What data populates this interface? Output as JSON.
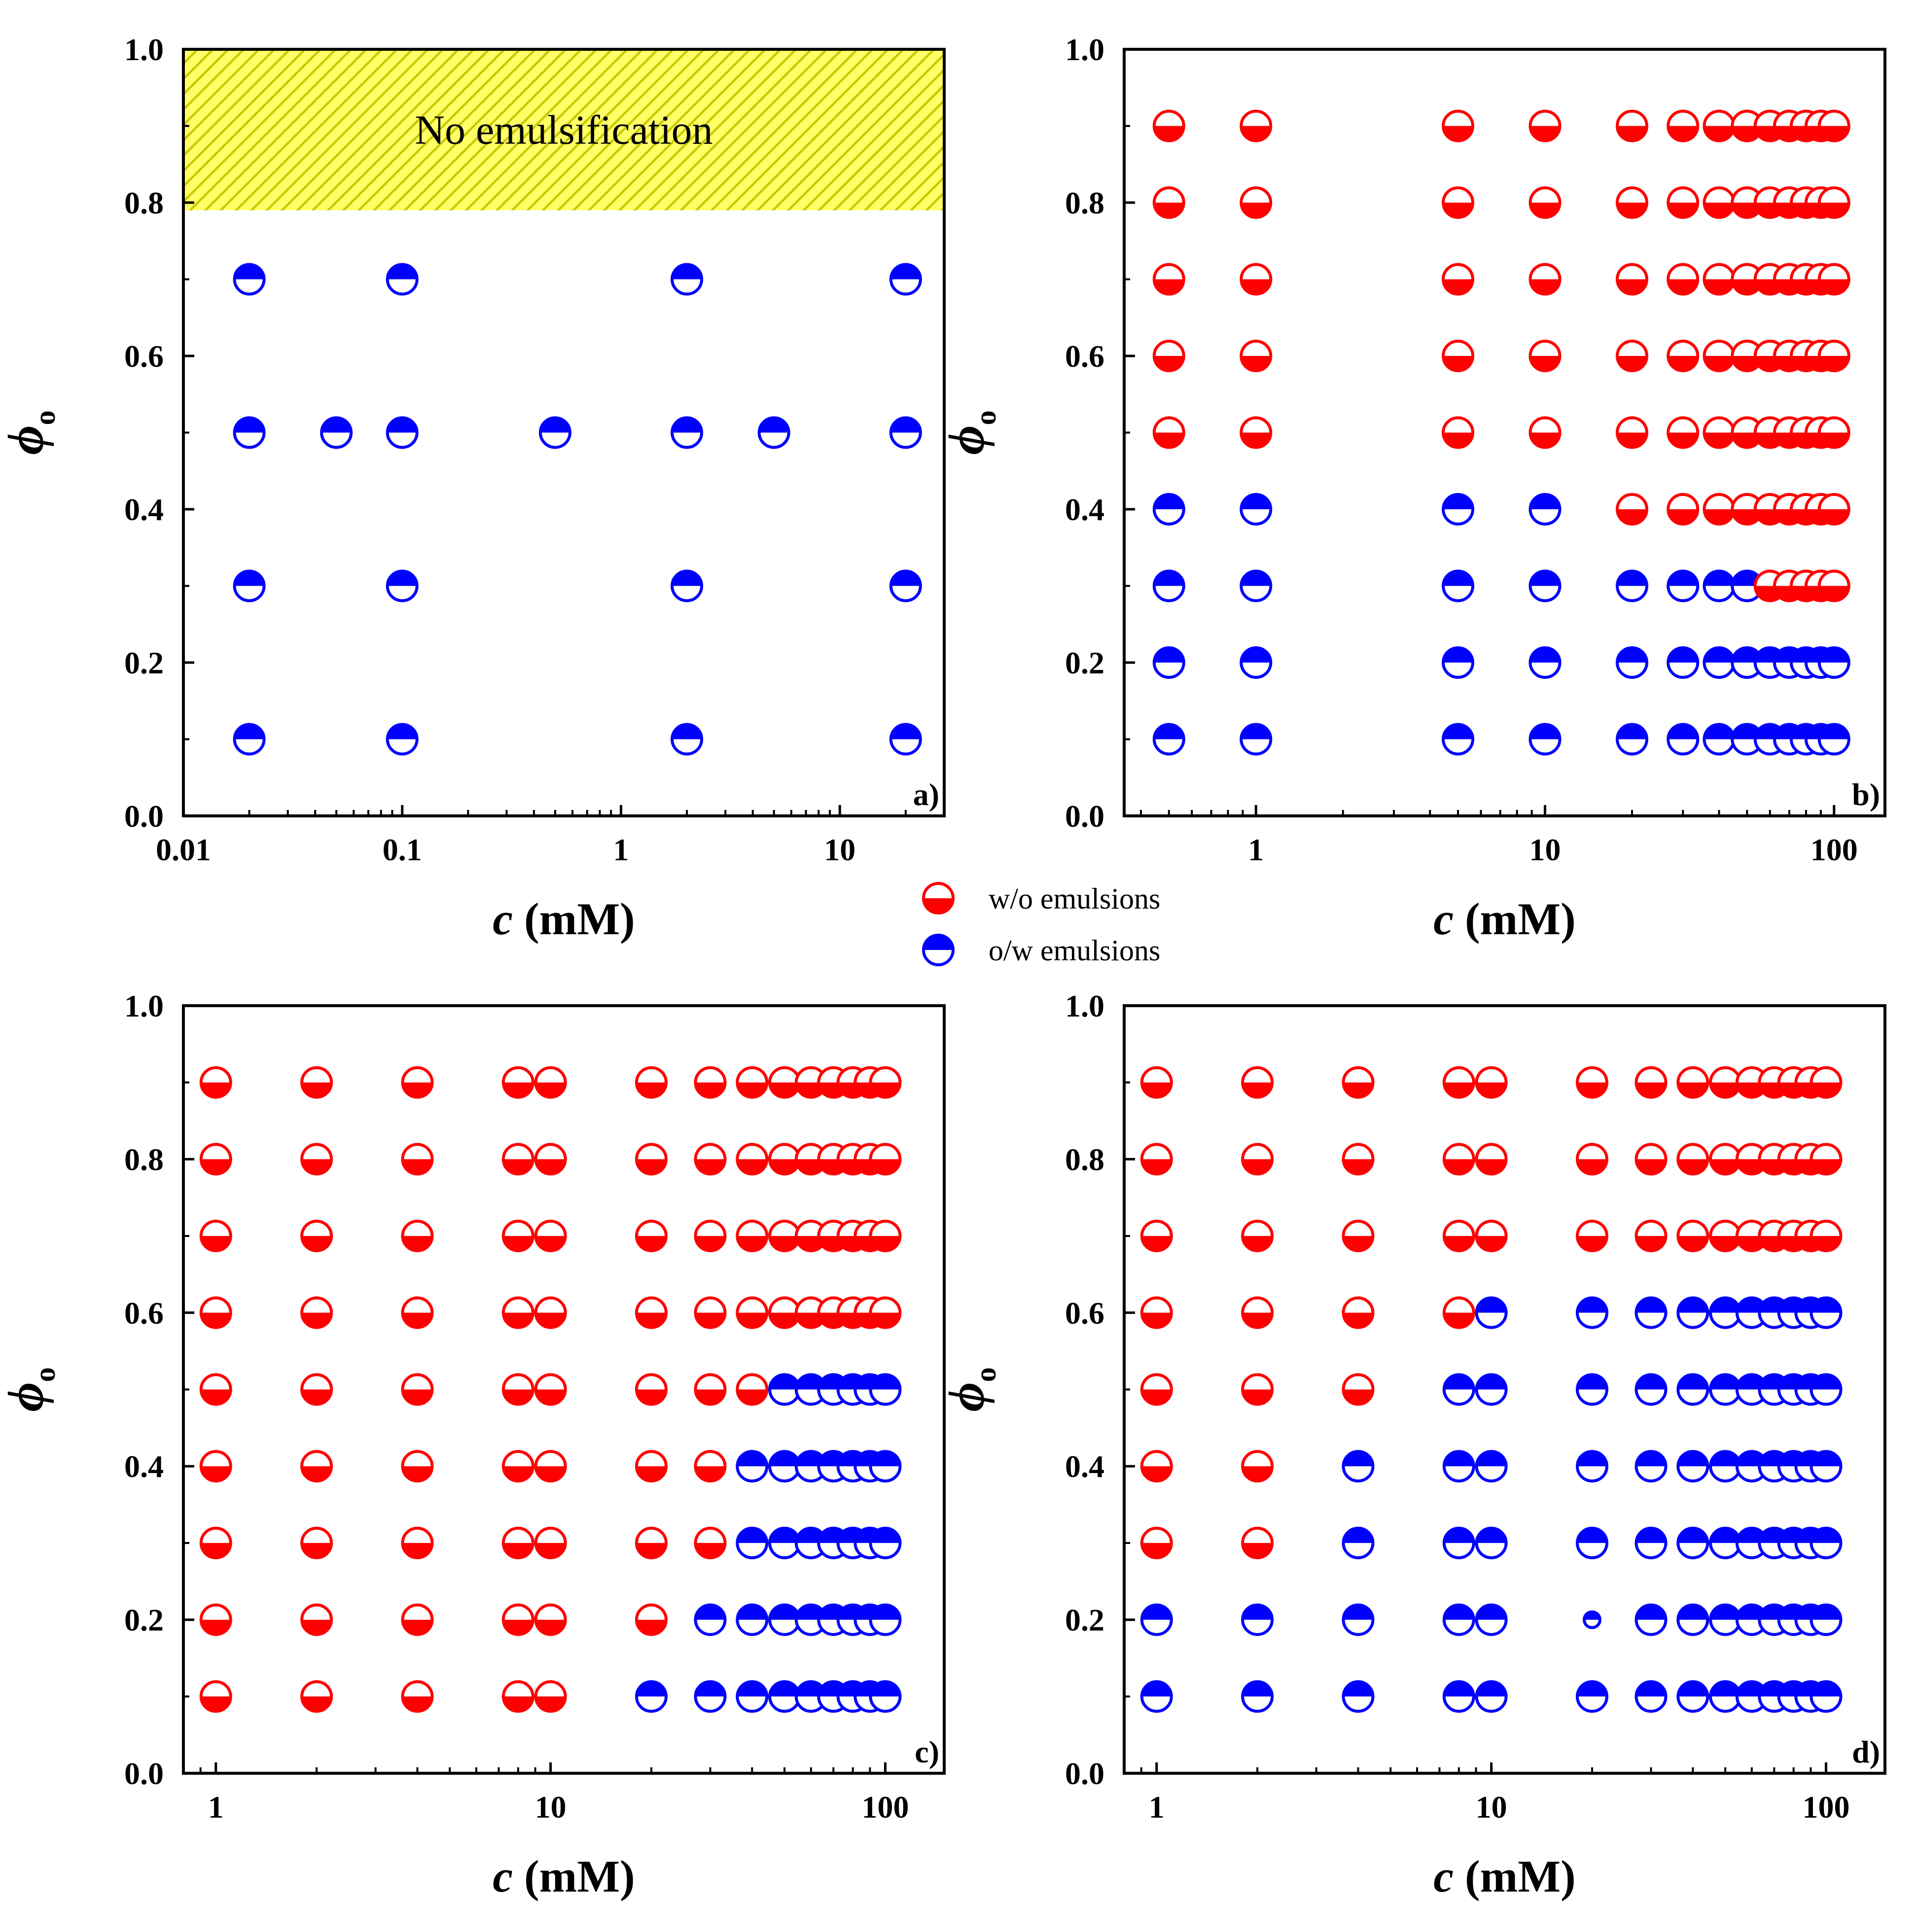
{
  "colors": {
    "w_o": "#ff0000",
    "o_w": "#0000ff",
    "no_emulsification_fill": "#ffff66",
    "no_emulsification_hatch": "#c8c800"
  },
  "legend": {
    "items": [
      {
        "label": "w/o emulsions",
        "type": "w/o",
        "color": "#ff0000"
      },
      {
        "label": "o/w emulsions",
        "type": "o/w",
        "color": "#0000ff"
      }
    ]
  },
  "chart_data": [
    {
      "type": "scatter",
      "panel_label": "a)",
      "xlabel_italic": "c",
      "xlabel_unit": "(mM)",
      "ylabel_symbol": "ϕ",
      "ylabel_sub": "o",
      "x_scale": "log",
      "xlim": [
        0.01,
        30
      ],
      "ylim": [
        0.0,
        1.0
      ],
      "xticks": [
        0.01,
        0.1,
        1,
        10
      ],
      "xtick_labels": [
        "0.01",
        "0.1",
        "1",
        "10"
      ],
      "yticks": [
        0.0,
        0.2,
        0.4,
        0.6,
        0.8,
        1.0
      ],
      "ytick_labels": [
        "0.0",
        "0.2",
        "0.4",
        "0.6",
        "0.8",
        "1.0"
      ],
      "region": {
        "label": "No emulsification",
        "y_from": 0.79,
        "y_to": 1.0
      },
      "points": [
        {
          "c": 0.02,
          "phi": 0.7,
          "type": "o/w"
        },
        {
          "c": 0.1,
          "phi": 0.7,
          "type": "o/w"
        },
        {
          "c": 2,
          "phi": 0.7,
          "type": "o/w"
        },
        {
          "c": 20,
          "phi": 0.7,
          "type": "o/w"
        },
        {
          "c": 0.02,
          "phi": 0.5,
          "type": "o/w"
        },
        {
          "c": 0.05,
          "phi": 0.5,
          "type": "o/w"
        },
        {
          "c": 0.1,
          "phi": 0.5,
          "type": "o/w"
        },
        {
          "c": 0.5,
          "phi": 0.5,
          "type": "o/w"
        },
        {
          "c": 2,
          "phi": 0.5,
          "type": "o/w"
        },
        {
          "c": 5,
          "phi": 0.5,
          "type": "o/w"
        },
        {
          "c": 20,
          "phi": 0.5,
          "type": "o/w"
        },
        {
          "c": 0.02,
          "phi": 0.3,
          "type": "o/w"
        },
        {
          "c": 0.1,
          "phi": 0.3,
          "type": "o/w"
        },
        {
          "c": 2,
          "phi": 0.3,
          "type": "o/w"
        },
        {
          "c": 20,
          "phi": 0.3,
          "type": "o/w"
        },
        {
          "c": 0.02,
          "phi": 0.1,
          "type": "o/w"
        },
        {
          "c": 0.1,
          "phi": 0.1,
          "type": "o/w"
        },
        {
          "c": 2,
          "phi": 0.1,
          "type": "o/w"
        },
        {
          "c": 20,
          "phi": 0.1,
          "type": "o/w"
        }
      ]
    },
    {
      "type": "scatter",
      "panel_label": "b)",
      "xlabel_italic": "c",
      "xlabel_unit": "(mM)",
      "ylabel_symbol": "ϕ",
      "ylabel_sub": "o",
      "x_scale": "log",
      "xlim": [
        0.35,
        150
      ],
      "ylim": [
        0.0,
        1.0
      ],
      "xticks": [
        1,
        10,
        100
      ],
      "xtick_labels": [
        "1",
        "10",
        "100"
      ],
      "yticks": [
        0.0,
        0.2,
        0.4,
        0.6,
        0.8,
        1.0
      ],
      "ytick_labels": [
        "0.0",
        "0.2",
        "0.4",
        "0.6",
        "0.8",
        "1.0"
      ],
      "concentrations": [
        0.5,
        1,
        5,
        10,
        20,
        30,
        40,
        50,
        60,
        70,
        80,
        90,
        100
      ],
      "rows": [
        {
          "phi": 0.9,
          "types": [
            "w/o",
            "w/o",
            "w/o",
            "w/o",
            "w/o",
            "w/o",
            "w/o",
            "w/o",
            "w/o",
            "w/o",
            "w/o",
            "w/o",
            "w/o"
          ]
        },
        {
          "phi": 0.8,
          "types": [
            "w/o",
            "w/o",
            "w/o",
            "w/o",
            "w/o",
            "w/o",
            "w/o",
            "w/o",
            "w/o",
            "w/o",
            "w/o",
            "w/o",
            "w/o"
          ]
        },
        {
          "phi": 0.7,
          "types": [
            "w/o",
            "w/o",
            "w/o",
            "w/o",
            "w/o",
            "w/o",
            "w/o",
            "w/o",
            "w/o",
            "w/o",
            "w/o",
            "w/o",
            "w/o"
          ]
        },
        {
          "phi": 0.6,
          "types": [
            "w/o",
            "w/o",
            "w/o",
            "w/o",
            "w/o",
            "w/o",
            "w/o",
            "w/o",
            "w/o",
            "w/o",
            "w/o",
            "w/o",
            "w/o"
          ]
        },
        {
          "phi": 0.5,
          "types": [
            "w/o",
            "w/o",
            "w/o",
            "w/o",
            "w/o",
            "w/o",
            "w/o",
            "w/o",
            "w/o",
            "w/o",
            "w/o",
            "w/o",
            "w/o"
          ]
        },
        {
          "phi": 0.4,
          "types": [
            "o/w",
            "o/w",
            "o/w",
            "o/w",
            "w/o",
            "w/o",
            "w/o",
            "w/o",
            "w/o",
            "w/o",
            "w/o",
            "w/o",
            "w/o"
          ]
        },
        {
          "phi": 0.3,
          "types": [
            "o/w",
            "o/w",
            "o/w",
            "o/w",
            "o/w",
            "o/w",
            "o/w",
            "o/w",
            "w/o",
            "w/o",
            "w/o",
            "w/o",
            "w/o"
          ]
        },
        {
          "phi": 0.2,
          "types": [
            "o/w",
            "o/w",
            "o/w",
            "o/w",
            "o/w",
            "o/w",
            "o/w",
            "o/w",
            "o/w",
            "o/w",
            "o/w",
            "o/w",
            "o/w"
          ]
        },
        {
          "phi": 0.1,
          "types": [
            "o/w",
            "o/w",
            "o/w",
            "o/w",
            "o/w",
            "o/w",
            "o/w",
            "o/w",
            "o/w",
            "o/w",
            "o/w",
            "o/w",
            "o/w"
          ]
        }
      ]
    },
    {
      "type": "scatter",
      "panel_label": "c)",
      "xlabel_italic": "c",
      "xlabel_unit": "(mM)",
      "ylabel_symbol": "ϕ",
      "ylabel_sub": "o",
      "x_scale": "log",
      "xlim": [
        0.8,
        150
      ],
      "ylim": [
        0.0,
        1.0
      ],
      "xticks": [
        1,
        10,
        100
      ],
      "xtick_labels": [
        "1",
        "10",
        "100"
      ],
      "yticks": [
        0.0,
        0.2,
        0.4,
        0.6,
        0.8,
        1.0
      ],
      "ytick_labels": [
        "0.0",
        "0.2",
        "0.4",
        "0.6",
        "0.8",
        "1.0"
      ],
      "concentrations": [
        1,
        2,
        4,
        8,
        10,
        20,
        30,
        40,
        50,
        60,
        70,
        80,
        90,
        100
      ],
      "rows": [
        {
          "phi": 0.9,
          "types": [
            "w/o",
            "w/o",
            "w/o",
            "w/o",
            "w/o",
            "w/o",
            "w/o",
            "w/o",
            "w/o",
            "w/o",
            "w/o",
            "w/o",
            "w/o",
            "w/o"
          ]
        },
        {
          "phi": 0.8,
          "types": [
            "w/o",
            "w/o",
            "w/o",
            "w/o",
            "w/o",
            "w/o",
            "w/o",
            "w/o",
            "w/o",
            "w/o",
            "w/o",
            "w/o",
            "w/o",
            "w/o"
          ]
        },
        {
          "phi": 0.7,
          "types": [
            "w/o",
            "w/o",
            "w/o",
            "w/o",
            "w/o",
            "w/o",
            "w/o",
            "w/o",
            "w/o",
            "w/o",
            "w/o",
            "w/o",
            "w/o",
            "w/o"
          ]
        },
        {
          "phi": 0.6,
          "types": [
            "w/o",
            "w/o",
            "w/o",
            "w/o",
            "w/o",
            "w/o",
            "w/o",
            "w/o",
            "w/o",
            "w/o",
            "w/o",
            "w/o",
            "w/o",
            "w/o"
          ]
        },
        {
          "phi": 0.5,
          "types": [
            "w/o",
            "w/o",
            "w/o",
            "w/o",
            "w/o",
            "w/o",
            "w/o",
            "w/o",
            "o/w",
            "o/w",
            "o/w",
            "o/w",
            "o/w",
            "o/w"
          ]
        },
        {
          "phi": 0.4,
          "types": [
            "w/o",
            "w/o",
            "w/o",
            "w/o",
            "w/o",
            "w/o",
            "w/o",
            "o/w",
            "o/w",
            "o/w",
            "o/w",
            "o/w",
            "o/w",
            "o/w"
          ]
        },
        {
          "phi": 0.3,
          "types": [
            "w/o",
            "w/o",
            "w/o",
            "w/o",
            "w/o",
            "w/o",
            "w/o",
            "o/w",
            "o/w",
            "o/w",
            "o/w",
            "o/w",
            "o/w",
            "o/w"
          ]
        },
        {
          "phi": 0.2,
          "types": [
            "w/o",
            "w/o",
            "w/o",
            "w/o",
            "w/o",
            "w/o",
            "o/w",
            "o/w",
            "o/w",
            "o/w",
            "o/w",
            "o/w",
            "o/w",
            "o/w"
          ]
        },
        {
          "phi": 0.1,
          "types": [
            "w/o",
            "w/o",
            "w/o",
            "w/o",
            "w/o",
            "o/w",
            "o/w",
            "o/w",
            "o/w",
            "o/w",
            "o/w",
            "o/w",
            "o/w",
            "o/w"
          ]
        }
      ]
    },
    {
      "type": "scatter",
      "panel_label": "d)",
      "xlabel_italic": "c",
      "xlabel_unit": "(mM)",
      "ylabel_symbol": "ϕ",
      "ylabel_sub": "o",
      "x_scale": "log",
      "xlim": [
        0.8,
        150
      ],
      "ylim": [
        0.0,
        1.0
      ],
      "xticks": [
        1,
        10,
        100
      ],
      "xtick_labels": [
        "1",
        "10",
        "100"
      ],
      "yticks": [
        0.0,
        0.2,
        0.4,
        0.6,
        0.8,
        1.0
      ],
      "ytick_labels": [
        "0.0",
        "0.2",
        "0.4",
        "0.6",
        "0.8",
        "1.0"
      ],
      "concentrations": [
        1,
        2,
        4,
        8,
        10,
        20,
        30,
        40,
        50,
        60,
        70,
        80,
        90,
        100
      ],
      "small_points": [
        {
          "c": 20,
          "phi": 0.2
        }
      ],
      "rows": [
        {
          "phi": 0.9,
          "types": [
            "w/o",
            "w/o",
            "w/o",
            "w/o",
            "w/o",
            "w/o",
            "w/o",
            "w/o",
            "w/o",
            "w/o",
            "w/o",
            "w/o",
            "w/o",
            "w/o"
          ]
        },
        {
          "phi": 0.8,
          "types": [
            "w/o",
            "w/o",
            "w/o",
            "w/o",
            "w/o",
            "w/o",
            "w/o",
            "w/o",
            "w/o",
            "w/o",
            "w/o",
            "w/o",
            "w/o",
            "w/o"
          ]
        },
        {
          "phi": 0.7,
          "types": [
            "w/o",
            "w/o",
            "w/o",
            "w/o",
            "w/o",
            "w/o",
            "w/o",
            "w/o",
            "w/o",
            "w/o",
            "w/o",
            "w/o",
            "w/o",
            "w/o"
          ]
        },
        {
          "phi": 0.6,
          "types": [
            "w/o",
            "w/o",
            "w/o",
            "w/o",
            "o/w",
            "o/w",
            "o/w",
            "o/w",
            "o/w",
            "o/w",
            "o/w",
            "o/w",
            "o/w",
            "o/w"
          ]
        },
        {
          "phi": 0.5,
          "types": [
            "w/o",
            "w/o",
            "w/o",
            "o/w",
            "o/w",
            "o/w",
            "o/w",
            "o/w",
            "o/w",
            "o/w",
            "o/w",
            "o/w",
            "o/w",
            "o/w"
          ]
        },
        {
          "phi": 0.4,
          "types": [
            "w/o",
            "w/o",
            "o/w",
            "o/w",
            "o/w",
            "o/w",
            "o/w",
            "o/w",
            "o/w",
            "o/w",
            "o/w",
            "o/w",
            "o/w",
            "o/w"
          ]
        },
        {
          "phi": 0.3,
          "types": [
            "w/o",
            "w/o",
            "o/w",
            "o/w",
            "o/w",
            "o/w",
            "o/w",
            "o/w",
            "o/w",
            "o/w",
            "o/w",
            "o/w",
            "o/w",
            "o/w"
          ]
        },
        {
          "phi": 0.2,
          "types": [
            "o/w",
            "o/w",
            "o/w",
            "o/w",
            "o/w",
            "o/w",
            "o/w",
            "o/w",
            "o/w",
            "o/w",
            "o/w",
            "o/w",
            "o/w",
            "o/w"
          ]
        },
        {
          "phi": 0.1,
          "types": [
            "o/w",
            "o/w",
            "o/w",
            "o/w",
            "o/w",
            "o/w",
            "o/w",
            "o/w",
            "o/w",
            "o/w",
            "o/w",
            "o/w",
            "o/w",
            "o/w"
          ]
        }
      ]
    }
  ]
}
